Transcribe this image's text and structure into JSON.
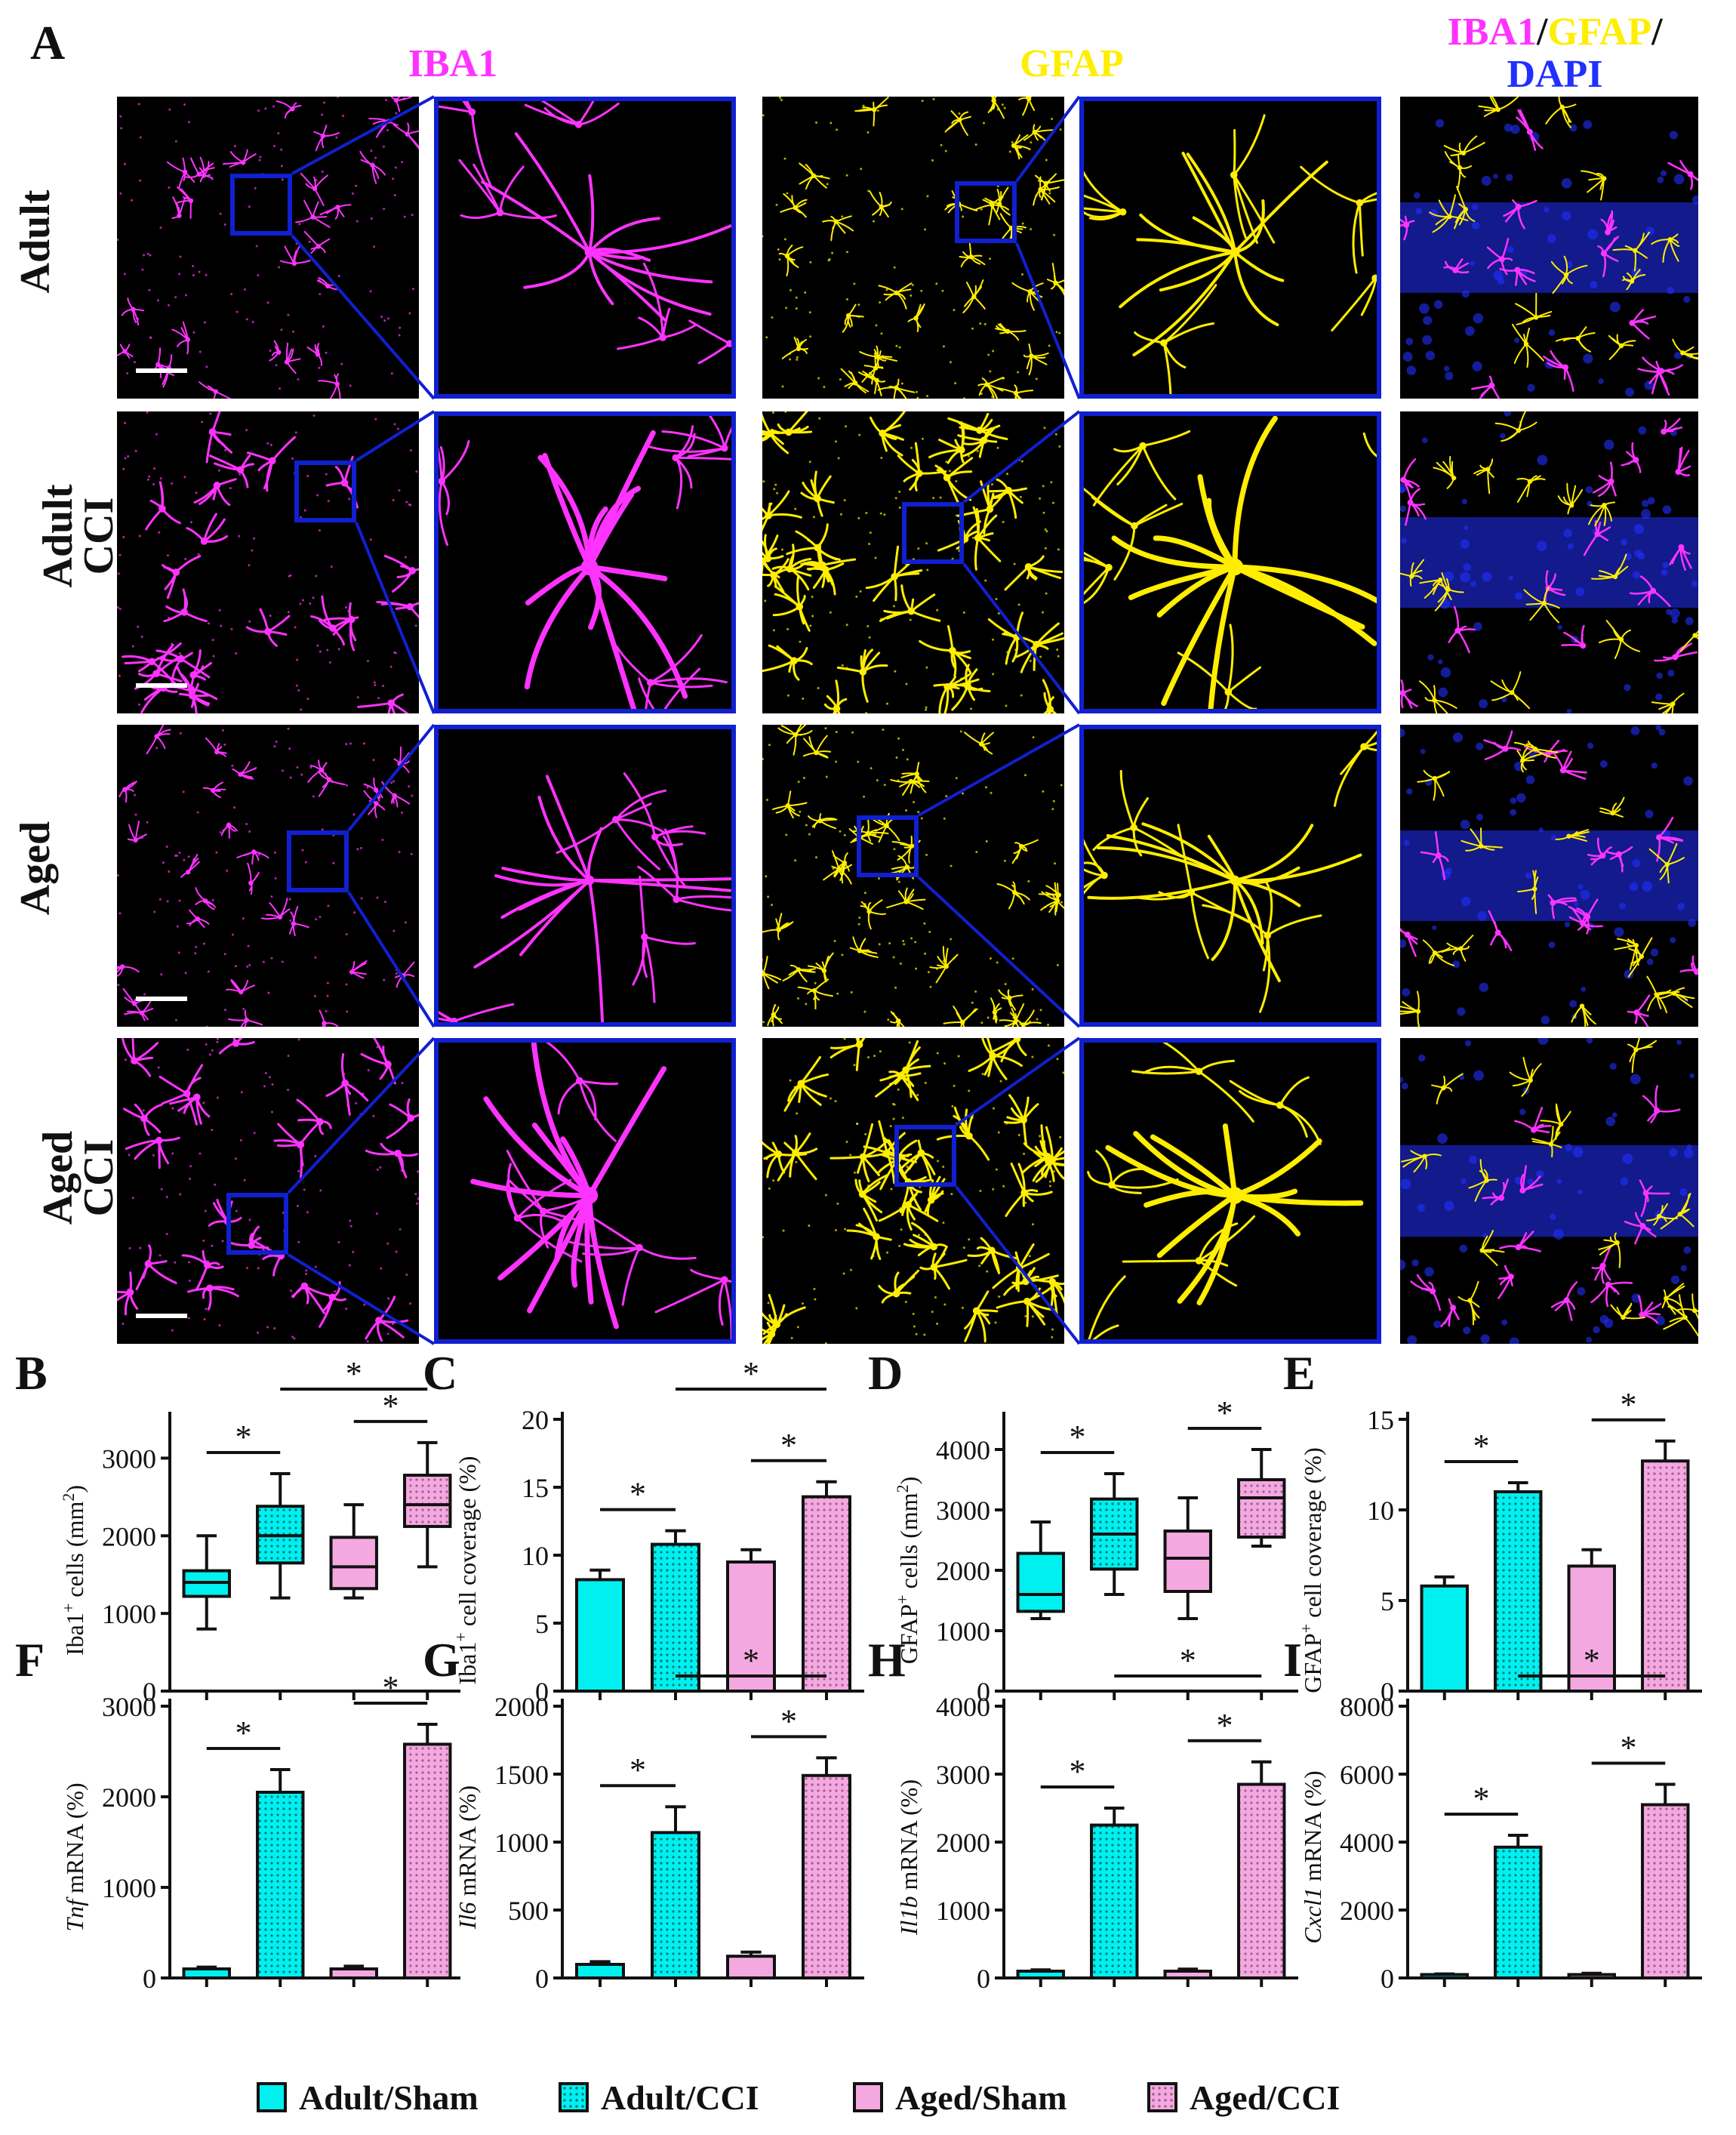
{
  "panel_letters": {
    "A": "A",
    "B": "B",
    "C": "C",
    "D": "D",
    "E": "E",
    "F": "F",
    "G": "G",
    "H": "H",
    "I": "I"
  },
  "column_headers": {
    "iba1": "IBA1",
    "gfap": "GFAP",
    "merge_iba1": "IBA1",
    "merge_sep1": "/",
    "merge_gfap": "GFAP",
    "merge_sep2": "/",
    "merge_dapi": "DAPI"
  },
  "row_labels": [
    {
      "line1": "Adult",
      "line2": ""
    },
    {
      "line1": "Adult",
      "line2": "CCI"
    },
    {
      "line1": "Aged",
      "line2": ""
    },
    {
      "line1": "Aged",
      "line2": "CCI"
    }
  ],
  "colors": {
    "iba1": "#ff33ff",
    "gfap": "#ffee00",
    "dapi": "#2030ff",
    "zoom_frame": "#1020d0",
    "adult": "#00f0f0",
    "aged": "#f4a8e0"
  },
  "legend": [
    {
      "label": "Adult/Sham",
      "pattern": "solid",
      "color": "#00f0f0"
    },
    {
      "label": "Adult/CCI",
      "pattern": "dotted",
      "color": "#00f0f0"
    },
    {
      "label": "Aged/Sham",
      "pattern": "solid",
      "color": "#f4a8e0"
    },
    {
      "label": "Aged/CCI",
      "pattern": "dotted",
      "color": "#f4a8e0"
    }
  ],
  "chart_data": [
    {
      "id": "B",
      "type": "box",
      "ylabel_main": "Iba1",
      "ylabel_sup": "+",
      "ylabel_rest": " cells (mm",
      "ylabel_sup2": "2",
      "ylabel_end": ")",
      "ylim": [
        0,
        3500
      ],
      "ticks": [
        0,
        1000,
        2000,
        3000
      ],
      "groups": [
        "Adult/Sham",
        "Adult/CCI",
        "Aged/Sham",
        "Aged/CCI"
      ],
      "boxes": [
        {
          "min": 800,
          "q1": 1220,
          "median": 1400,
          "q3": 1550,
          "max": 2000
        },
        {
          "min": 1200,
          "q1": 1650,
          "median": 2000,
          "q3": 2380,
          "max": 2800
        },
        {
          "min": 1200,
          "q1": 1320,
          "median": 1600,
          "q3": 1980,
          "max": 2400
        },
        {
          "min": 1600,
          "q1": 2120,
          "median": 2400,
          "q3": 2780,
          "max": 3200
        }
      ],
      "sig": [
        {
          "from": 0,
          "to": 1,
          "label": "*"
        },
        {
          "from": 2,
          "to": 3,
          "label": "*"
        },
        {
          "from": 1,
          "to": 3,
          "label": "*"
        }
      ]
    },
    {
      "id": "C",
      "type": "bar",
      "ylabel_main": "Iba1",
      "ylabel_sup": "+",
      "ylabel_rest": " cell coverage (%)",
      "ylim": [
        0,
        20
      ],
      "ticks": [
        0,
        5,
        10,
        15,
        20
      ],
      "groups": [
        "Adult/Sham",
        "Adult/CCI",
        "Aged/Sham",
        "Aged/CCI"
      ],
      "values": [
        8.2,
        10.8,
        9.5,
        14.3
      ],
      "errors": [
        0.7,
        1.0,
        0.9,
        1.1
      ],
      "sig": [
        {
          "from": 0,
          "to": 1,
          "label": "*"
        },
        {
          "from": 2,
          "to": 3,
          "label": "*"
        },
        {
          "from": 1,
          "to": 3,
          "label": "*"
        }
      ]
    },
    {
      "id": "D",
      "type": "box",
      "ylabel_main": "GFAP",
      "ylabel_sup": "+",
      "ylabel_rest": " cells (mm",
      "ylabel_sup2": "2",
      "ylabel_end": ")",
      "ylim": [
        0,
        4500
      ],
      "ticks": [
        0,
        1000,
        2000,
        3000,
        4000
      ],
      "groups": [
        "Adult/Sham",
        "Adult/CCI",
        "Aged/Sham",
        "Aged/CCI"
      ],
      "boxes": [
        {
          "min": 1200,
          "q1": 1320,
          "median": 1600,
          "q3": 2280,
          "max": 2800
        },
        {
          "min": 1600,
          "q1": 2020,
          "median": 2600,
          "q3": 3180,
          "max": 3600
        },
        {
          "min": 1200,
          "q1": 1650,
          "median": 2200,
          "q3": 2650,
          "max": 3200
        },
        {
          "min": 2400,
          "q1": 2550,
          "median": 3200,
          "q3": 3500,
          "max": 4000
        }
      ],
      "sig": [
        {
          "from": 0,
          "to": 1,
          "label": "*"
        },
        {
          "from": 2,
          "to": 3,
          "label": "*"
        }
      ]
    },
    {
      "id": "E",
      "type": "bar",
      "ylabel_main": "GFAP",
      "ylabel_sup": "+",
      "ylabel_rest": " cell coverage (%)",
      "ylim": [
        0,
        15
      ],
      "ticks": [
        0,
        5,
        10,
        15
      ],
      "groups": [
        "Adult/Sham",
        "Adult/CCI",
        "Aged/Sham",
        "Aged/CCI"
      ],
      "values": [
        5.8,
        11.0,
        6.9,
        12.7
      ],
      "errors": [
        0.5,
        0.5,
        0.9,
        1.1
      ],
      "sig": [
        {
          "from": 0,
          "to": 1,
          "label": "*"
        },
        {
          "from": 2,
          "to": 3,
          "label": "*"
        }
      ]
    },
    {
      "id": "F",
      "type": "bar",
      "ylabel_italic": "Tnf",
      "ylabel_rest": " mRNA (%)",
      "ylim": [
        0,
        3000
      ],
      "ticks": [
        0,
        1000,
        2000,
        3000
      ],
      "groups": [
        "Adult/Sham",
        "Adult/CCI",
        "Aged/Sham",
        "Aged/CCI"
      ],
      "values": [
        100,
        2050,
        100,
        2580
      ],
      "errors": [
        20,
        250,
        30,
        220
      ],
      "sig": [
        {
          "from": 0,
          "to": 1,
          "label": "*"
        },
        {
          "from": 2,
          "to": 3,
          "label": "*"
        }
      ]
    },
    {
      "id": "G",
      "type": "bar",
      "ylabel_italic": "Il6",
      "ylabel_rest": " mRNA (%)",
      "ylim": [
        0,
        2000
      ],
      "ticks": [
        0,
        500,
        1000,
        1500,
        2000
      ],
      "groups": [
        "Adult/Sham",
        "Adult/CCI",
        "Aged/Sham",
        "Aged/CCI"
      ],
      "values": [
        100,
        1070,
        160,
        1490
      ],
      "errors": [
        20,
        190,
        30,
        130
      ],
      "sig": [
        {
          "from": 0,
          "to": 1,
          "label": "*"
        },
        {
          "from": 2,
          "to": 3,
          "label": "*"
        },
        {
          "from": 1,
          "to": 3,
          "label": "*"
        }
      ]
    },
    {
      "id": "H",
      "type": "bar",
      "ylabel_italic": "Il1b",
      "ylabel_rest": " mRNA (%)",
      "ylim": [
        0,
        4000
      ],
      "ticks": [
        0,
        1000,
        2000,
        3000,
        4000
      ],
      "groups": [
        "Adult/Sham",
        "Adult/CCI",
        "Aged/Sham",
        "Aged/CCI"
      ],
      "values": [
        100,
        2250,
        100,
        2850
      ],
      "errors": [
        20,
        250,
        30,
        330
      ],
      "sig": [
        {
          "from": 0,
          "to": 1,
          "label": "*"
        },
        {
          "from": 2,
          "to": 3,
          "label": "*"
        },
        {
          "from": 1,
          "to": 3,
          "label": "*"
        }
      ]
    },
    {
      "id": "I",
      "type": "bar",
      "ylabel_italic": "Cxcl1",
      "ylabel_rest": " mRNA (%)",
      "ylim": [
        0,
        8000
      ],
      "ticks": [
        0,
        2000,
        4000,
        6000,
        8000
      ],
      "groups": [
        "Adult/Sham",
        "Adult/CCI",
        "Aged/Sham",
        "Aged/CCI"
      ],
      "values": [
        100,
        3850,
        100,
        5100
      ],
      "errors": [
        20,
        350,
        40,
        600
      ],
      "sig": [
        {
          "from": 0,
          "to": 1,
          "label": "*"
        },
        {
          "from": 2,
          "to": 3,
          "label": "*"
        },
        {
          "from": 1,
          "to": 3,
          "label": "*"
        }
      ]
    }
  ]
}
